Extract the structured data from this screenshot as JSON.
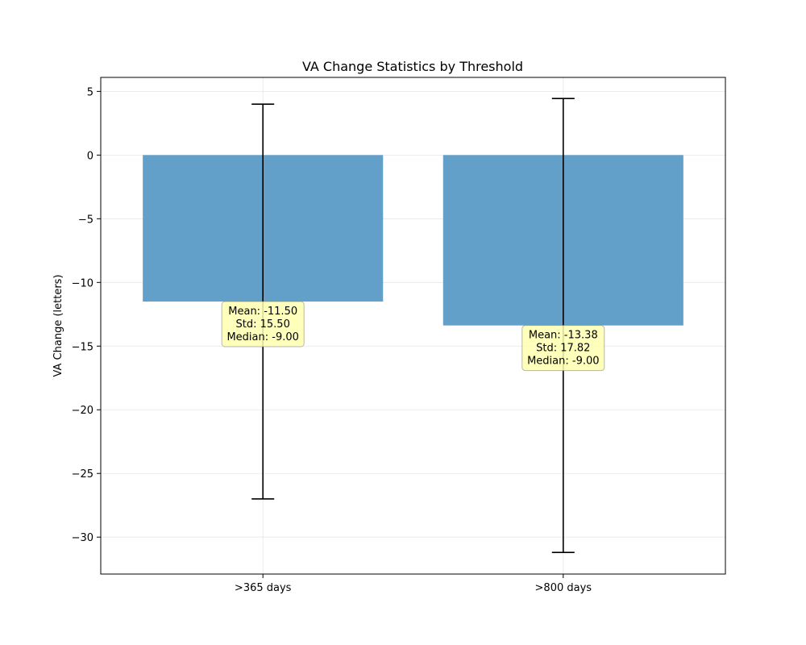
{
  "chart_data": {
    "type": "bar",
    "title": "VA Change Statistics by Threshold",
    "xlabel": "",
    "ylabel": "VA Change (letters)",
    "categories": [
      ">365 days",
      ">800 days"
    ],
    "values": [
      -11.5,
      -13.38
    ],
    "errors": [
      15.5,
      17.82
    ],
    "ylim": [
      -32.9,
      6.1
    ],
    "yticks": [
      5,
      0,
      -5,
      -10,
      -15,
      -20,
      -25,
      -30
    ],
    "ytick_labels": [
      "5",
      "0",
      "−5",
      "−10",
      "−15",
      "−20",
      "−25",
      "−30"
    ],
    "grid": true,
    "bar_color": "#62a0ca",
    "annotations": [
      [
        "Mean: -11.50",
        "Std: 15.50",
        "Median: -9.00"
      ],
      [
        "Mean: -13.38",
        "Std: 17.82",
        "Median: -9.00"
      ]
    ],
    "annotation_bg": "#ffffb0"
  }
}
